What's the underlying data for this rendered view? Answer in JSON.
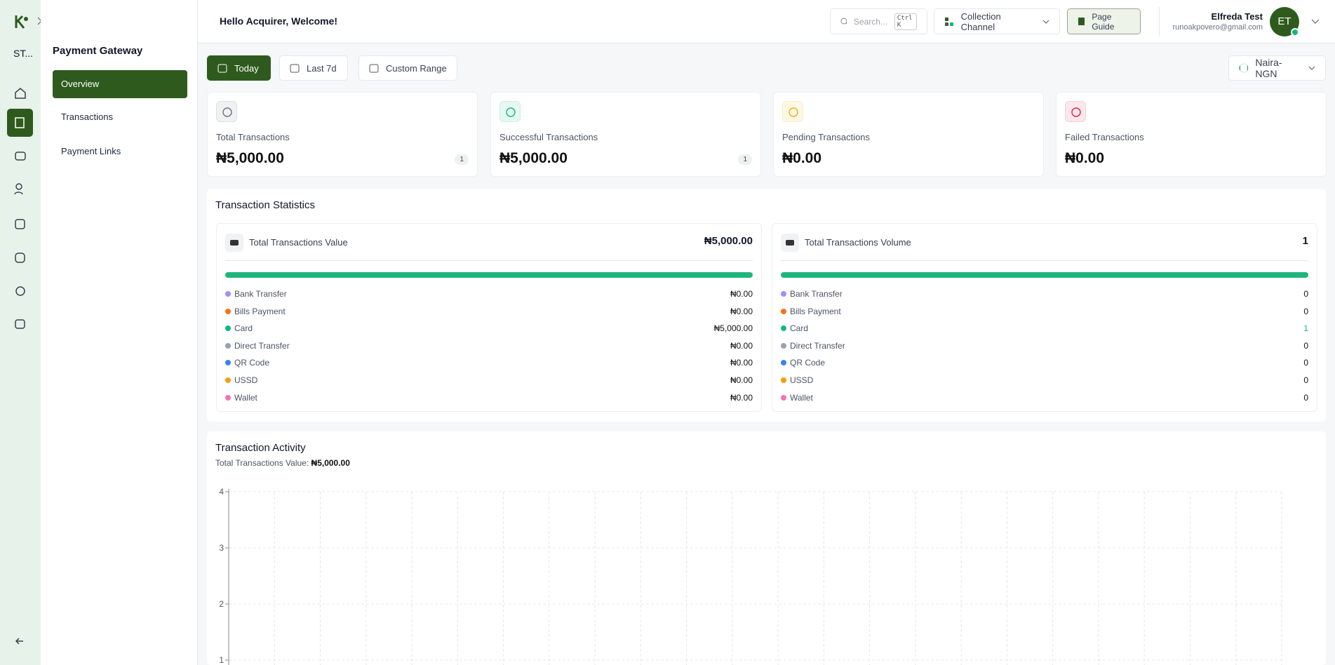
{
  "sidebar": {
    "workspace": "ST...",
    "title": "Payment Gateway",
    "menu": [
      "Overview",
      "Transactions",
      "Payment Links"
    ]
  },
  "header": {
    "greeting": "Hello Acquirer, Welcome!",
    "search": "Search...",
    "shortcut": "Ctrl K",
    "channel": "Collection Channel",
    "guide": "Page Guide",
    "user": {
      "name": "Elfreda Test",
      "email": "runoakpovero@gmail.com",
      "initials": "ET"
    }
  },
  "filters": {
    "ranges": [
      "Today",
      "Last 7d",
      "Custom Range"
    ],
    "currency": "Naira-NGN"
  },
  "cards": [
    {
      "label": "Total Transactions",
      "amount": "₦5,000.00",
      "count": 1,
      "color": "#6b7280"
    },
    {
      "label": "Successful Transactions",
      "amount": "₦5,000.00",
      "count": 1,
      "color": "#10b981"
    },
    {
      "label": "Pending Transactions",
      "amount": "₦0.00",
      "color": "#eab308"
    },
    {
      "label": "Failed Transactions",
      "amount": "₦0.00",
      "color": "#e11d48"
    }
  ],
  "statistics": {
    "title": "Transaction Statistics",
    "panels": [
      {
        "title": "Total Transactions Value",
        "total": "₦5,000.00",
        "rows": [
          {
            "label": "Bank Transfer",
            "value": "₦0.00",
            "color": "#a78bfa"
          },
          {
            "label": "Bills Payment",
            "value": "₦0.00",
            "color": "#f97316"
          },
          {
            "label": "Card",
            "value": "₦5,000.00",
            "color": "#10b981"
          },
          {
            "label": "Direct Transfer",
            "value": "₦0.00",
            "color": "#94a3b8"
          },
          {
            "label": "QR Code",
            "value": "₦0.00",
            "color": "#3b82f6"
          },
          {
            "label": "USSD",
            "value": "₦0.00",
            "color": "#f59e0b"
          },
          {
            "label": "Wallet",
            "value": "₦0.00",
            "color": "#f472b6"
          }
        ]
      },
      {
        "title": "Total Transactions Volume",
        "total": 1,
        "rows": [
          {
            "label": "Bank Transfer",
            "value": 0,
            "color": "#a78bfa"
          },
          {
            "label": "Bills Payment",
            "value": 0,
            "color": "#f97316"
          },
          {
            "label": "Card",
            "value": 1,
            "color": "#10b981"
          },
          {
            "label": "Direct Transfer",
            "value": 0,
            "color": "#94a3b8"
          },
          {
            "label": "QR Code",
            "value": 0,
            "color": "#3b82f6"
          },
          {
            "label": "USSD",
            "value": 0,
            "color": "#f59e0b"
          },
          {
            "label": "Wallet",
            "value": 0,
            "color": "#f472b6"
          }
        ]
      }
    ]
  },
  "activity": {
    "title": "Transaction Activity",
    "summary_label": "Total Transactions Value:",
    "summary_value": "₦5,000.00",
    "ylim": [
      0,
      4
    ],
    "yticks": [
      1,
      2,
      3,
      4
    ],
    "grid": true
  }
}
